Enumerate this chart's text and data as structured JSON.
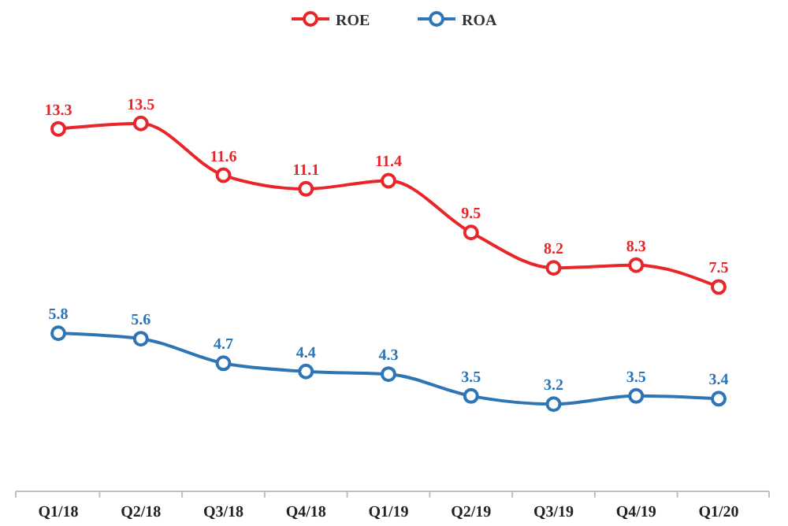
{
  "chart_data": {
    "type": "line",
    "categories": [
      "Q1/18",
      "Q2/18",
      "Q3/18",
      "Q4/18",
      "Q1/19",
      "Q2/19",
      "Q3/19",
      "Q4/19",
      "Q1/20"
    ],
    "series": [
      {
        "name": "ROE",
        "color": "#e8262a",
        "values": [
          13.3,
          13.5,
          11.6,
          11.1,
          11.4,
          9.5,
          8.2,
          8.3,
          7.5
        ]
      },
      {
        "name": "ROA",
        "color": "#2e75b6",
        "values": [
          5.8,
          5.6,
          4.7,
          4.4,
          4.3,
          3.5,
          3.2,
          3.5,
          3.4
        ]
      }
    ],
    "data_labels": true,
    "legend": "top",
    "marker": "circle",
    "line_style": "solid",
    "tick_labels": "x"
  }
}
